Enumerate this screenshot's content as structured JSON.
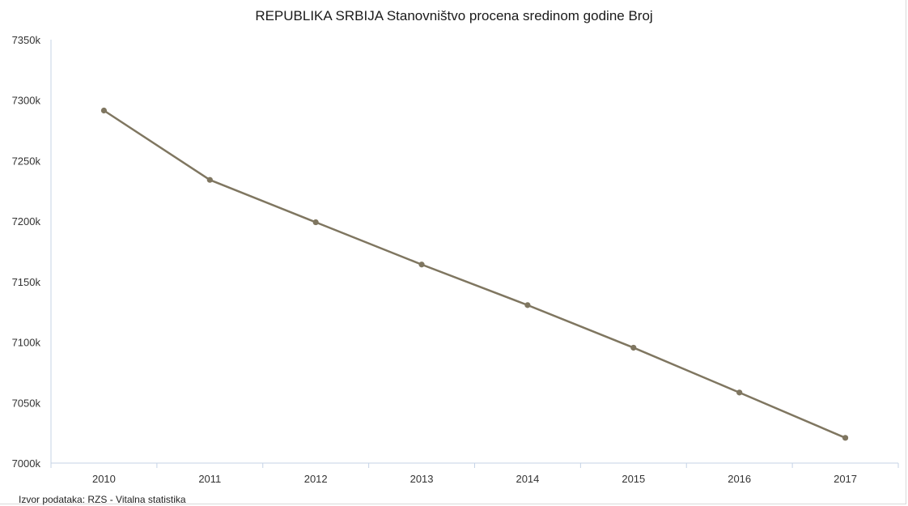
{
  "title": "REPUBLIKA SRBIJA Stanovništvo procena sredinom godine Broj",
  "source": "Izvor podataka: RZS - Vitalna statistika",
  "chart_data": {
    "type": "line",
    "title": "REPUBLIKA SRBIJA Stanovništvo procena sredinom godine Broj",
    "categories": [
      "2010",
      "2011",
      "2012",
      "2013",
      "2014",
      "2015",
      "2016",
      "2017"
    ],
    "series": [
      {
        "values": [
          7291436,
          7234099,
          7199077,
          7164132,
          7130576,
          7095383,
          7058322,
          7020858
        ],
        "color": "#7f7660"
      }
    ],
    "ylim": [
      7000000,
      7350000
    ],
    "yticks": [
      "7000k",
      "7050k",
      "7100k",
      "7150k",
      "7200k",
      "7250k",
      "7300k",
      "7350k"
    ],
    "ytick_values": [
      7000000,
      7050000,
      7100000,
      7150000,
      7200000,
      7250000,
      7300000,
      7350000
    ],
    "grid": false,
    "legend": "none"
  }
}
